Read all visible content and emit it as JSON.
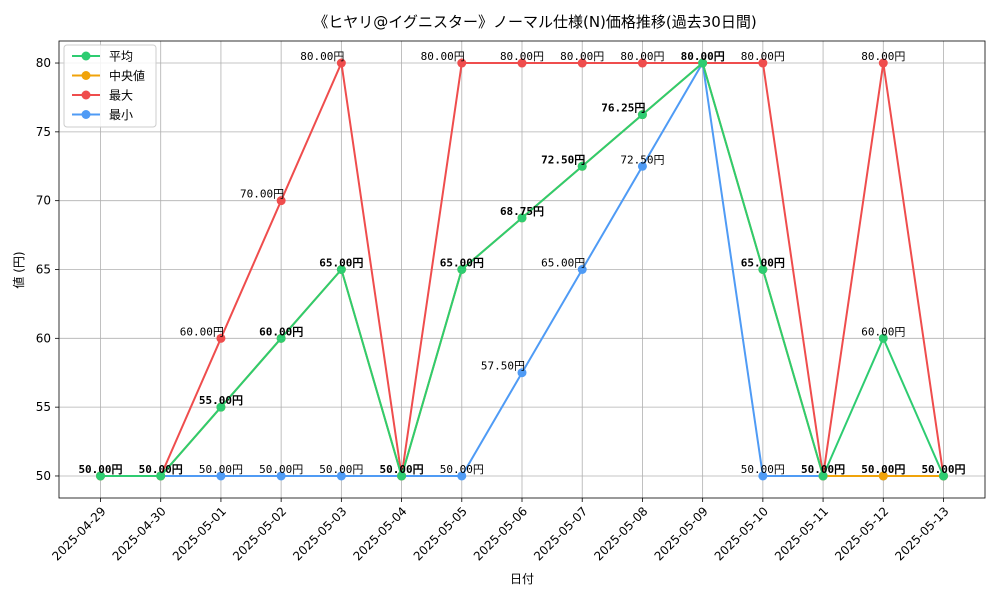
{
  "chart_data": {
    "type": "line",
    "title": "《ヒヤリ@イグニスター》ノーマル仕様(N)価格推移(過去30日間)",
    "xlabel": "日付",
    "ylabel": "値 (円)",
    "ylim": [
      48.4,
      81.6
    ],
    "yticks": [
      50,
      55,
      60,
      65,
      70,
      75,
      80
    ],
    "grid": true,
    "legend_position": "top-left",
    "categories": [
      "2025-04-29",
      "2025-04-30",
      "2025-05-01",
      "2025-05-02",
      "2025-05-03",
      "2025-05-04",
      "2025-05-05",
      "2025-05-06",
      "2025-05-07",
      "2025-05-08",
      "2025-05-09",
      "2025-05-10",
      "2025-05-11",
      "2025-05-12",
      "2025-05-13"
    ],
    "series": [
      {
        "name": "平均",
        "color": "#2ecc71",
        "values": [
          50,
          50,
          55,
          60,
          65,
          50,
          65,
          68.75,
          72.5,
          76.25,
          80,
          65,
          50,
          60,
          50
        ]
      },
      {
        "name": "中央値",
        "color": "#f0a30a",
        "values": [
          50,
          50,
          55,
          60,
          65,
          50,
          65,
          68.75,
          72.5,
          76.25,
          80,
          65,
          50,
          50,
          50
        ]
      },
      {
        "name": "最大",
        "color": "#ef4d4d",
        "values": [
          50,
          50,
          60,
          70,
          80,
          50,
          80,
          80,
          80,
          80,
          80,
          80,
          50,
          80,
          50
        ]
      },
      {
        "name": "最小",
        "color": "#4f9bf5",
        "values": [
          50,
          50,
          50,
          50,
          50,
          50,
          50,
          57.5,
          65,
          72.5,
          80,
          50,
          50,
          50,
          50
        ]
      }
    ],
    "data_labels": [
      "50.00円",
      "50.00円",
      "55.00円",
      "60.00円",
      "65.00円",
      "50.00円",
      "65.00円",
      "68.75円",
      "72.50円",
      "76.25円",
      "80.00円",
      "65.00円",
      "50.00円",
      "50.00円",
      "50.00円",
      "60.00円",
      "70.00円",
      "80.00円",
      "80.00円",
      "80.00円",
      "80.00円",
      "80.00円",
      "80.00円",
      "80.00円",
      "60.00円",
      "50.00円",
      "50.00円",
      "50.00円",
      "50.00円",
      "57.50円",
      "65.00円",
      "72.50円",
      "50.00円"
    ],
    "label_specs": [
      [
        0,
        50,
        "c",
        1,
        0
      ],
      [
        1,
        50,
        "c",
        1,
        1
      ],
      [
        2,
        55,
        "c",
        1,
        2
      ],
      [
        3,
        60,
        "c",
        1,
        3
      ],
      [
        4,
        65,
        "c",
        1,
        4
      ],
      [
        5,
        50,
        "c",
        1,
        5
      ],
      [
        6,
        65,
        "c",
        1,
        6
      ],
      [
        7,
        68.75,
        "c",
        1,
        7
      ],
      [
        8,
        72.5,
        "l",
        1,
        8
      ],
      [
        9,
        76.25,
        "l",
        1,
        9
      ],
      [
        10,
        80,
        "c",
        1,
        10
      ],
      [
        11,
        65,
        "c",
        1,
        11
      ],
      [
        12,
        50,
        "c",
        1,
        12
      ],
      [
        13,
        50,
        "c",
        1,
        13
      ],
      [
        14,
        50,
        "c",
        1,
        14
      ],
      [
        2,
        60,
        "l",
        0,
        15
      ],
      [
        3,
        70,
        "l",
        0,
        16
      ],
      [
        4,
        80,
        "l",
        0,
        17
      ],
      [
        6,
        80,
        "l",
        0,
        18
      ],
      [
        7,
        80,
        "c",
        0,
        19
      ],
      [
        8,
        80,
        "c",
        0,
        20
      ],
      [
        9,
        80,
        "c",
        0,
        21
      ],
      [
        11,
        80,
        "c",
        0,
        22
      ],
      [
        13,
        80,
        "c",
        0,
        23
      ],
      [
        13,
        60,
        "c",
        0,
        24
      ],
      [
        2,
        50,
        "c",
        0,
        25
      ],
      [
        3,
        50,
        "c",
        0,
        26
      ],
      [
        4,
        50,
        "c",
        0,
        27
      ],
      [
        6,
        50,
        "c",
        0,
        28
      ],
      [
        7,
        57.5,
        "l",
        0,
        29
      ],
      [
        8,
        65,
        "l",
        0,
        30
      ],
      [
        9,
        72.5,
        "c",
        0,
        31
      ],
      [
        11,
        50,
        "c",
        0,
        32
      ]
    ]
  }
}
